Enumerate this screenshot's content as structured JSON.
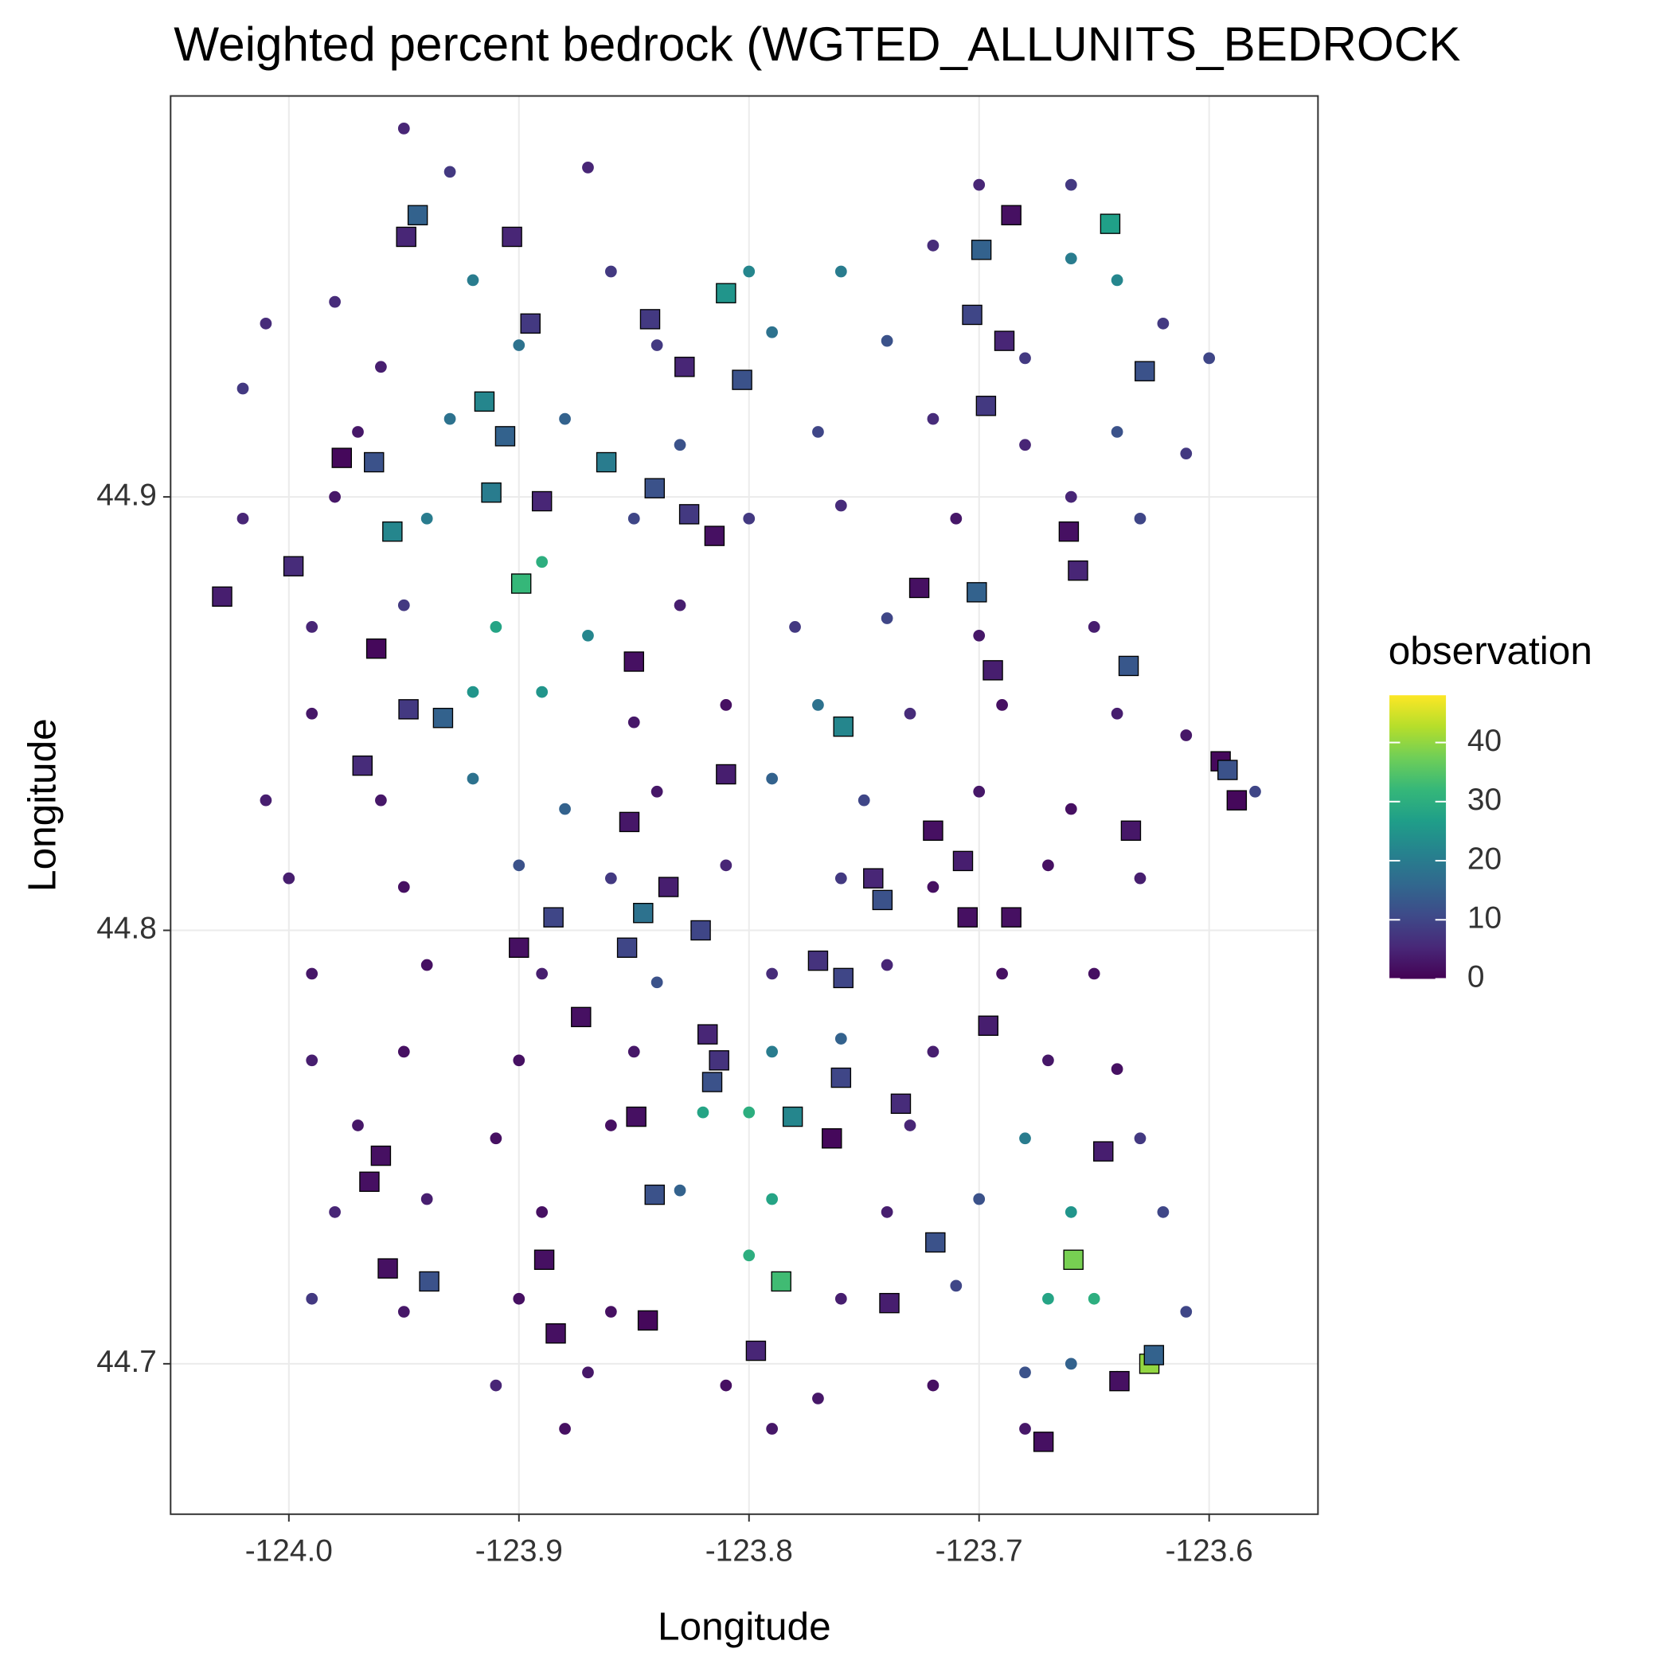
{
  "chart_data": {
    "type": "scatter",
    "title": "Weighted percent bedrock (WGTED_ALLUNITS_BEDROCK",
    "x_label": "Longitude",
    "y_label": "Longitude",
    "xlim": [
      -124.0514,
      -123.5527
    ],
    "ylim": [
      44.6653,
      44.9925
    ],
    "xticks": [
      {
        "value": -124,
        "label": "-124.0"
      },
      -123.9,
      -123.8,
      -123.7,
      -123.6
    ],
    "yticks": [
      44.7,
      44.8,
      44.9
    ],
    "grid": true,
    "colorbar": {
      "title": "observation",
      "lim": [
        0,
        48
      ],
      "ticks": [
        0,
        10,
        20,
        30,
        40
      ],
      "colors": [
        "#440154",
        "#482878",
        "#3e4a89",
        "#31688e",
        "#26828e",
        "#1f9e89",
        "#35b779",
        "#6ece58",
        "#b5de2b",
        "#fde725"
      ]
    },
    "series": [
      {
        "shape": "circle",
        "x": [
          -123.93,
          -123.87,
          -123.7,
          -123.66,
          -123.95,
          -123.98,
          -123.92,
          -123.86,
          -123.8,
          -123.76,
          -123.72,
          -123.66,
          -123.64,
          -124.01,
          -123.96,
          -123.9,
          -123.84,
          -123.79,
          -123.74,
          -123.68,
          -123.62,
          -123.6,
          -124.02,
          -123.97,
          -123.93,
          -123.88,
          -123.83,
          -123.77,
          -123.72,
          -123.68,
          -123.64,
          -123.61,
          -124.02,
          -123.98,
          -123.94,
          -123.89,
          -123.85,
          -123.8,
          -123.76,
          -123.71,
          -123.66,
          -123.63,
          -123.99,
          -123.95,
          -123.91,
          -123.87,
          -123.83,
          -123.78,
          -123.74,
          -123.7,
          -123.65,
          -123.99,
          -123.92,
          -123.89,
          -123.85,
          -123.81,
          -123.77,
          -123.73,
          -123.69,
          -123.64,
          -123.61,
          -124.01,
          -123.96,
          -123.92,
          -123.88,
          -123.84,
          -123.79,
          -123.75,
          -123.7,
          -123.66,
          -123.58,
          -124.0,
          -123.95,
          -123.9,
          -123.86,
          -123.81,
          -123.76,
          -123.72,
          -123.67,
          -123.63,
          -123.99,
          -123.94,
          -123.89,
          -123.84,
          -123.79,
          -123.74,
          -123.69,
          -123.65,
          -123.99,
          -123.95,
          -123.9,
          -123.85,
          -123.79,
          -123.76,
          -123.72,
          -123.67,
          -123.64,
          -123.97,
          -123.91,
          -123.86,
          -123.82,
          -123.8,
          -123.73,
          -123.68,
          -123.63,
          -123.98,
          -123.94,
          -123.89,
          -123.83,
          -123.79,
          -123.74,
          -123.7,
          -123.66,
          -123.62,
          -123.99,
          -123.95,
          -123.9,
          -123.86,
          -123.8,
          -123.76,
          -123.71,
          -123.67,
          -123.65,
          -123.61,
          -123.91,
          -123.87,
          -123.81,
          -123.77,
          -123.72,
          -123.68,
          -123.66,
          -123.64,
          -123.88,
          -123.79,
          -123.68
        ],
        "y": [
          44.975,
          44.976,
          44.972,
          44.972,
          44.985,
          44.945,
          44.95,
          44.952,
          44.952,
          44.952,
          44.958,
          44.955,
          44.95,
          44.94,
          44.93,
          44.935,
          44.935,
          44.938,
          44.936,
          44.932,
          44.94,
          44.932,
          44.925,
          44.915,
          44.918,
          44.918,
          44.912,
          44.915,
          44.918,
          44.912,
          44.915,
          44.91,
          44.895,
          44.9,
          44.895,
          44.885,
          44.895,
          44.895,
          44.898,
          44.895,
          44.9,
          44.895,
          44.87,
          44.875,
          44.87,
          44.868,
          44.875,
          44.87,
          44.872,
          44.868,
          44.87,
          44.85,
          44.855,
          44.855,
          44.848,
          44.852,
          44.852,
          44.85,
          44.852,
          44.85,
          44.845,
          44.83,
          44.83,
          44.835,
          44.828,
          44.832,
          44.835,
          44.83,
          44.832,
          44.828,
          44.832,
          44.812,
          44.81,
          44.815,
          44.812,
          44.815,
          44.812,
          44.81,
          44.815,
          44.812,
          44.79,
          44.792,
          44.79,
          44.788,
          44.79,
          44.792,
          44.79,
          44.79,
          44.77,
          44.772,
          44.77,
          44.772,
          44.772,
          44.775,
          44.772,
          44.77,
          44.768,
          44.755,
          44.752,
          44.755,
          44.758,
          44.758,
          44.755,
          44.752,
          44.752,
          44.735,
          44.738,
          44.735,
          44.74,
          44.738,
          44.735,
          44.738,
          44.735,
          44.735,
          44.715,
          44.712,
          44.715,
          44.712,
          44.725,
          44.715,
          44.718,
          44.715,
          44.715,
          44.712,
          44.695,
          44.698,
          44.695,
          44.692,
          44.695,
          44.698,
          44.7,
          44.697,
          44.685,
          44.685,
          44.685
        ],
        "values": [
          8,
          5,
          5,
          8,
          5,
          6,
          20,
          8,
          22,
          20,
          6,
          20,
          22,
          6,
          4,
          18,
          8,
          18,
          12,
          8,
          8,
          10,
          8,
          3,
          18,
          15,
          12,
          10,
          6,
          5,
          12,
          8,
          5,
          3,
          20,
          30,
          10,
          8,
          6,
          3,
          5,
          10,
          5,
          8,
          28,
          22,
          4,
          8,
          10,
          3,
          4,
          3,
          25,
          25,
          3,
          2,
          18,
          6,
          2,
          4,
          3,
          4,
          3,
          18,
          15,
          3,
          15,
          10,
          3,
          2,
          10,
          4,
          2,
          12,
          8,
          5,
          8,
          2,
          2,
          4,
          3,
          2,
          4,
          12,
          6,
          5,
          2,
          2,
          4,
          2,
          2,
          3,
          20,
          15,
          4,
          3,
          2,
          3,
          2,
          2,
          28,
          30,
          5,
          20,
          8,
          5,
          4,
          2,
          15,
          28,
          4,
          12,
          25,
          10,
          8,
          3,
          2,
          2,
          30,
          4,
          10,
          28,
          30,
          10,
          5,
          3,
          2,
          3,
          2,
          12,
          15,
          8,
          2,
          3,
          3
        ]
      },
      {
        "shape": "square",
        "x": [
          -123.944,
          -123.949,
          -123.903,
          -123.81,
          -123.895,
          -123.843,
          -123.699,
          -123.686,
          -123.643,
          -123.703,
          -123.689,
          -123.628,
          -123.828,
          -123.803,
          -123.915,
          -123.906,
          -123.697,
          -123.977,
          -123.963,
          -123.862,
          -123.912,
          -123.89,
          -123.841,
          -123.826,
          -123.815,
          -123.955,
          -123.998,
          -124.029,
          -123.899,
          -123.661,
          -123.657,
          -123.726,
          -123.701,
          -123.962,
          -123.85,
          -123.694,
          -123.635,
          -123.948,
          -123.933,
          -123.759,
          -123.968,
          -123.81,
          -123.595,
          -123.592,
          -123.588,
          -123.852,
          -123.72,
          -123.634,
          -123.835,
          -123.707,
          -123.746,
          -123.742,
          -123.846,
          -123.885,
          -123.821,
          -123.705,
          -123.686,
          -123.9,
          -123.853,
          -123.77,
          -123.759,
          -123.873,
          -123.696,
          -123.818,
          -123.813,
          -123.816,
          -123.76,
          -123.734,
          -123.849,
          -123.781,
          -123.764,
          -123.96,
          -123.646,
          -123.965,
          -123.841,
          -123.719,
          -123.659,
          -123.889,
          -123.957,
          -123.939,
          -123.786,
          -123.739,
          -123.844,
          -123.884,
          -123.797,
          -123.626,
          -123.624,
          -123.639,
          -123.672
        ],
        "y": [
          44.965,
          44.96,
          44.96,
          44.947,
          44.94,
          44.941,
          44.957,
          44.965,
          44.963,
          44.942,
          44.936,
          44.929,
          44.93,
          44.927,
          44.922,
          44.914,
          44.921,
          44.909,
          44.908,
          44.908,
          44.901,
          44.899,
          44.902,
          44.896,
          44.891,
          44.892,
          44.884,
          44.877,
          44.88,
          44.892,
          44.883,
          44.879,
          44.878,
          44.865,
          44.862,
          44.86,
          44.861,
          44.851,
          44.849,
          44.847,
          44.838,
          44.836,
          44.839,
          44.837,
          44.83,
          44.825,
          44.823,
          44.823,
          44.81,
          44.816,
          44.812,
          44.807,
          44.804,
          44.803,
          44.8,
          44.803,
          44.803,
          44.796,
          44.796,
          44.793,
          44.789,
          44.78,
          44.778,
          44.776,
          44.77,
          44.765,
          44.766,
          44.76,
          44.757,
          44.757,
          44.752,
          44.748,
          44.749,
          44.742,
          44.739,
          44.728,
          44.724,
          44.724,
          44.722,
          44.719,
          44.719,
          44.714,
          44.71,
          44.707,
          44.703,
          44.7,
          44.702,
          44.696,
          44.682
        ],
        "values": [
          15,
          5,
          5,
          25,
          8,
          8,
          15,
          2,
          27,
          10,
          5,
          12,
          5,
          12,
          22,
          15,
          8,
          1,
          12,
          20,
          20,
          5,
          12,
          8,
          2,
          22,
          6,
          4,
          32,
          2,
          5,
          2,
          15,
          1,
          2,
          4,
          13,
          8,
          15,
          22,
          6,
          4,
          1,
          12,
          1,
          3,
          2,
          3,
          4,
          4,
          5,
          12,
          18,
          10,
          10,
          2,
          2,
          2,
          10,
          7,
          10,
          2,
          4,
          5,
          7,
          12,
          10,
          6,
          2,
          22,
          1,
          2,
          4,
          2,
          12,
          12,
          38,
          2,
          2,
          12,
          33,
          4,
          1,
          2,
          5,
          40,
          15,
          2,
          2
        ]
      }
    ]
  }
}
